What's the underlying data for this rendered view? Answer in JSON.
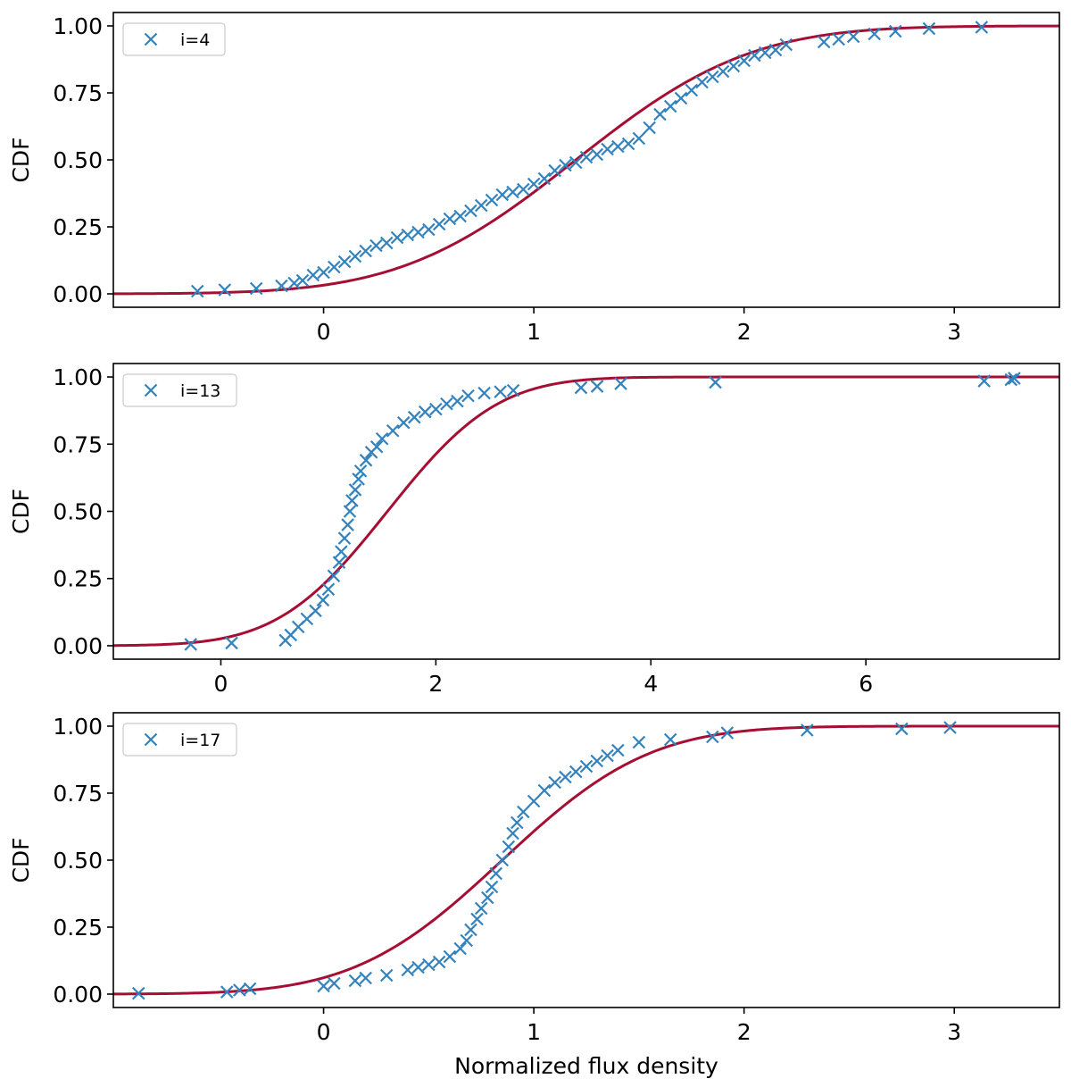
{
  "chart_data": [
    {
      "type": "scatter",
      "ylabel": "CDF",
      "xlabel": "",
      "xlim": [
        -1.0,
        3.5
      ],
      "ylim": [
        -0.05,
        1.05
      ],
      "xticks": [
        "0",
        "1",
        "2",
        "3"
      ],
      "xtick_values": [
        0,
        1,
        2,
        3
      ],
      "yticks": [
        "0.00",
        "0.25",
        "0.50",
        "0.75",
        "1.00"
      ],
      "ytick_values": [
        0,
        0.25,
        0.5,
        0.75,
        1.0
      ],
      "legend": {
        "label": "i=4",
        "position": "top-left"
      },
      "marker_color": "#3182bd",
      "fit_color": "#a50f34",
      "fit_model": {
        "kind": "normal-cdf",
        "mean": 1.2,
        "sd": 0.65
      },
      "series": [
        {
          "name": "i=4",
          "x": [
            -0.6,
            -0.47,
            -0.32,
            -0.2,
            -0.14,
            -0.1,
            -0.05,
            0.0,
            0.05,
            0.1,
            0.15,
            0.2,
            0.25,
            0.3,
            0.35,
            0.4,
            0.45,
            0.5,
            0.55,
            0.6,
            0.65,
            0.7,
            0.75,
            0.8,
            0.85,
            0.9,
            0.95,
            1.0,
            1.05,
            1.1,
            1.15,
            1.2,
            1.25,
            1.3,
            1.35,
            1.4,
            1.45,
            1.5,
            1.55,
            1.6,
            1.65,
            1.7,
            1.75,
            1.8,
            1.85,
            1.9,
            1.95,
            2.0,
            2.05,
            2.1,
            2.15,
            2.2,
            2.38,
            2.45,
            2.52,
            2.62,
            2.72,
            2.88,
            3.13
          ],
          "y": [
            0.01,
            0.015,
            0.02,
            0.03,
            0.04,
            0.05,
            0.07,
            0.08,
            0.1,
            0.12,
            0.14,
            0.16,
            0.18,
            0.19,
            0.21,
            0.22,
            0.23,
            0.24,
            0.26,
            0.28,
            0.29,
            0.31,
            0.33,
            0.35,
            0.37,
            0.38,
            0.39,
            0.41,
            0.43,
            0.46,
            0.48,
            0.49,
            0.51,
            0.52,
            0.54,
            0.55,
            0.56,
            0.58,
            0.62,
            0.67,
            0.7,
            0.73,
            0.76,
            0.79,
            0.81,
            0.83,
            0.85,
            0.87,
            0.89,
            0.9,
            0.91,
            0.93,
            0.94,
            0.95,
            0.96,
            0.97,
            0.98,
            0.99,
            0.995
          ]
        }
      ]
    },
    {
      "type": "scatter",
      "ylabel": "CDF",
      "xlabel": "",
      "xlim": [
        -1.0,
        7.8
      ],
      "ylim": [
        -0.05,
        1.05
      ],
      "xticks": [
        "0",
        "2",
        "4",
        "6"
      ],
      "xtick_values": [
        0,
        2,
        4,
        6
      ],
      "yticks": [
        "0.00",
        "0.25",
        "0.50",
        "0.75",
        "1.00"
      ],
      "ytick_values": [
        0,
        0.25,
        0.5,
        0.75,
        1.0
      ],
      "legend": {
        "label": "i=13",
        "position": "top-left"
      },
      "marker_color": "#3182bd",
      "fit_color": "#a50f34",
      "fit_model": {
        "kind": "normal-cdf",
        "mean": 1.55,
        "sd": 0.8
      },
      "series": [
        {
          "name": "i=13",
          "x": [
            -0.28,
            0.1,
            0.6,
            0.65,
            0.72,
            0.8,
            0.88,
            0.95,
            1.0,
            1.05,
            1.1,
            1.12,
            1.15,
            1.18,
            1.2,
            1.22,
            1.25,
            1.28,
            1.3,
            1.35,
            1.4,
            1.45,
            1.5,
            1.6,
            1.7,
            1.8,
            1.9,
            2.0,
            2.1,
            2.2,
            2.3,
            2.45,
            2.6,
            2.72,
            3.35,
            3.5,
            3.72,
            4.6,
            7.1,
            7.35,
            7.38
          ],
          "y": [
            0.005,
            0.01,
            0.02,
            0.04,
            0.07,
            0.1,
            0.13,
            0.17,
            0.21,
            0.26,
            0.31,
            0.35,
            0.4,
            0.45,
            0.5,
            0.54,
            0.58,
            0.62,
            0.65,
            0.69,
            0.72,
            0.74,
            0.77,
            0.8,
            0.83,
            0.85,
            0.87,
            0.88,
            0.9,
            0.91,
            0.93,
            0.94,
            0.945,
            0.95,
            0.96,
            0.965,
            0.975,
            0.98,
            0.985,
            0.99,
            0.995
          ]
        }
      ]
    },
    {
      "type": "scatter",
      "ylabel": "CDF",
      "xlabel": "Normalized flux density",
      "xlim": [
        -1.0,
        3.5
      ],
      "ylim": [
        -0.05,
        1.05
      ],
      "xticks": [
        "0",
        "1",
        "2",
        "3"
      ],
      "xtick_values": [
        0,
        1,
        2,
        3
      ],
      "yticks": [
        "0.00",
        "0.25",
        "0.50",
        "0.75",
        "1.00"
      ],
      "ytick_values": [
        0,
        0.25,
        0.5,
        0.75,
        1.0
      ],
      "legend": {
        "label": "i=17",
        "position": "top-left"
      },
      "marker_color": "#3182bd",
      "fit_color": "#a50f34",
      "fit_model": {
        "kind": "normal-cdf",
        "mean": 0.85,
        "sd": 0.55
      },
      "series": [
        {
          "name": "i=17",
          "x": [
            -0.88,
            -0.46,
            -0.4,
            -0.35,
            0.0,
            0.05,
            0.15,
            0.2,
            0.3,
            0.4,
            0.45,
            0.5,
            0.55,
            0.6,
            0.65,
            0.68,
            0.7,
            0.73,
            0.75,
            0.78,
            0.8,
            0.82,
            0.85,
            0.88,
            0.9,
            0.92,
            0.95,
            1.0,
            1.05,
            1.1,
            1.15,
            1.2,
            1.25,
            1.3,
            1.35,
            1.4,
            1.5,
            1.65,
            1.85,
            1.92,
            2.3,
            2.75,
            2.98
          ],
          "y": [
            0.003,
            0.008,
            0.015,
            0.02,
            0.03,
            0.04,
            0.05,
            0.06,
            0.07,
            0.09,
            0.1,
            0.11,
            0.12,
            0.14,
            0.17,
            0.2,
            0.24,
            0.28,
            0.32,
            0.36,
            0.4,
            0.45,
            0.5,
            0.55,
            0.6,
            0.64,
            0.68,
            0.72,
            0.76,
            0.79,
            0.81,
            0.83,
            0.85,
            0.87,
            0.89,
            0.91,
            0.94,
            0.95,
            0.96,
            0.975,
            0.985,
            0.99,
            0.995
          ]
        }
      ]
    }
  ]
}
